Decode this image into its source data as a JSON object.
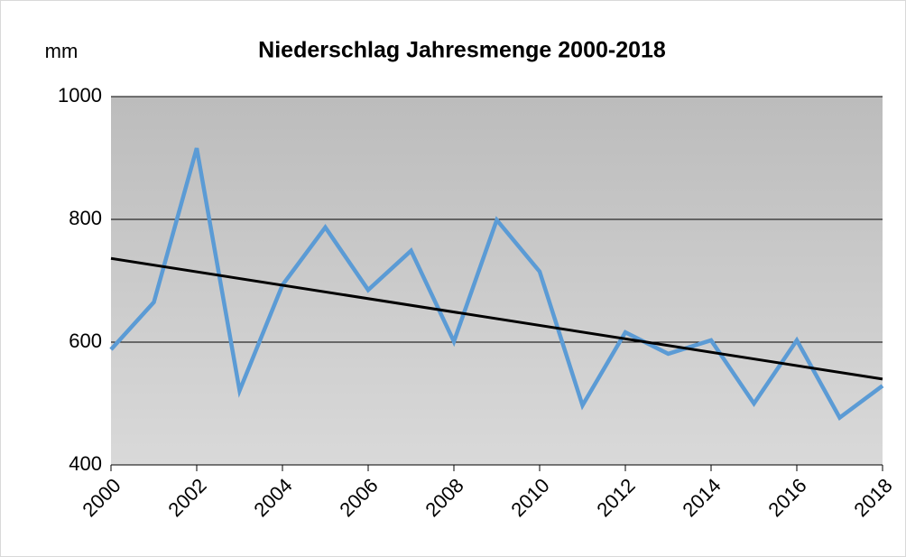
{
  "chart_data": {
    "type": "line",
    "title": "Niederschlag Jahresmenge 2000-2018",
    "y_label": "mm",
    "x": [
      2000,
      2001,
      2002,
      2003,
      2004,
      2005,
      2006,
      2007,
      2008,
      2009,
      2010,
      2011,
      2012,
      2013,
      2014,
      2015,
      2016,
      2017,
      2018
    ],
    "series": [
      {
        "name": "Niederschlag",
        "color": "#5b9bd5",
        "values": [
          588,
          665,
          916,
          521,
          693,
          787,
          685,
          749,
          601,
          799,
          715,
          497,
          616,
          581,
          603,
          500,
          603,
          477,
          529
        ]
      }
    ],
    "xlim": [
      2000,
      2018
    ],
    "xticks": [
      2000,
      2002,
      2004,
      2006,
      2008,
      2010,
      2012,
      2014,
      2016,
      2018
    ],
    "ylim": [
      400,
      1000
    ],
    "yticks": [
      400,
      600,
      800,
      1000
    ],
    "grid": true,
    "trendline": true,
    "trendline_color": "#000000"
  }
}
